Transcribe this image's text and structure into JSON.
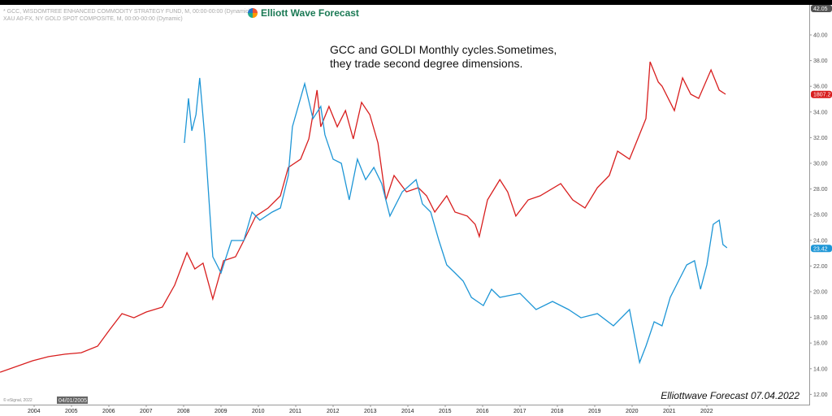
{
  "legend": [
    "* GCC, WISDOMTREE ENHANCED COMMODITY STRATEGY FUND, M, 00:00-00:00 (Dynamic)",
    "XAU A0-FX, NY GOLD SPOT COMPOSITE, M, 00:00-00:00 (Dynamic)"
  ],
  "brand": "Elliott Wave Forecast",
  "footer": "Elliottwave Forecast  07.04.2022",
  "copyright": "© eSignal, 2022",
  "colors": {
    "gcc": "#1e96d6",
    "gold": "#d81e1e"
  },
  "chart_data": {
    "type": "line",
    "title": "GCC and GOLDI Monthly cycles.Sometimes,\nthey trade second degree dimensions.",
    "xlim": [
      2003.1,
      2023.5
    ],
    "ylim": [
      11.5,
      42.05
    ],
    "y_ticks": [
      12,
      14,
      16,
      18,
      20,
      22,
      24,
      26,
      28,
      30,
      32,
      34,
      36,
      38,
      40
    ],
    "y_tick_labels": [
      "12.00",
      "14.00",
      "16.00",
      "18.00",
      "20.00",
      "22.00",
      "24.00",
      "26.00",
      "28.00",
      "30.00",
      "32.00",
      "34.00",
      "36.00",
      "38.00",
      "40.00"
    ],
    "x_ticks": [
      "2004",
      "2005",
      "2006",
      "2007",
      "2008",
      "2009",
      "2010",
      "2011",
      "2012",
      "2013",
      "2014",
      "2015",
      "2016",
      "2017",
      "2018",
      "2019",
      "2020",
      "2021",
      "2022"
    ],
    "x_cursor_label": "04/01/2005",
    "top_label": "42.05",
    "grid": false,
    "series": [
      {
        "name": "XAU A0-FX",
        "color": "#d81e1e",
        "last_label": "1807.2",
        "points": [
          [
            2003.09,
            13.73
          ],
          [
            2003.96,
            14.62
          ],
          [
            2004.39,
            14.94
          ],
          [
            2004.83,
            15.13
          ],
          [
            2005.26,
            15.25
          ],
          [
            2005.7,
            15.76
          ],
          [
            2006.02,
            17.03
          ],
          [
            2006.35,
            18.29
          ],
          [
            2006.67,
            17.97
          ],
          [
            2007.0,
            18.42
          ],
          [
            2007.43,
            18.8
          ],
          [
            2007.76,
            20.51
          ],
          [
            2008.09,
            23.04
          ],
          [
            2008.3,
            21.77
          ],
          [
            2008.52,
            22.22
          ],
          [
            2008.78,
            19.43
          ],
          [
            2009.07,
            22.41
          ],
          [
            2009.39,
            22.72
          ],
          [
            2009.61,
            23.99
          ],
          [
            2009.93,
            25.89
          ],
          [
            2010.26,
            26.52
          ],
          [
            2010.59,
            27.47
          ],
          [
            2010.8,
            29.68
          ],
          [
            2011.13,
            30.32
          ],
          [
            2011.35,
            31.9
          ],
          [
            2011.57,
            35.7
          ],
          [
            2011.67,
            32.85
          ],
          [
            2011.89,
            34.43
          ],
          [
            2012.11,
            32.85
          ],
          [
            2012.33,
            34.11
          ],
          [
            2012.54,
            31.9
          ],
          [
            2012.76,
            34.75
          ],
          [
            2012.98,
            33.8
          ],
          [
            2013.2,
            31.58
          ],
          [
            2013.41,
            27.15
          ],
          [
            2013.63,
            29.05
          ],
          [
            2013.96,
            27.78
          ],
          [
            2014.28,
            28.1
          ],
          [
            2014.5,
            27.47
          ],
          [
            2014.72,
            26.2
          ],
          [
            2015.04,
            27.47
          ],
          [
            2015.26,
            26.2
          ],
          [
            2015.59,
            25.89
          ],
          [
            2015.8,
            25.25
          ],
          [
            2015.91,
            24.3
          ],
          [
            2016.13,
            27.15
          ],
          [
            2016.46,
            28.73
          ],
          [
            2016.67,
            27.78
          ],
          [
            2016.89,
            25.89
          ],
          [
            2017.22,
            27.15
          ],
          [
            2017.54,
            27.47
          ],
          [
            2018.09,
            28.42
          ],
          [
            2018.41,
            27.15
          ],
          [
            2018.74,
            26.52
          ],
          [
            2019.07,
            28.1
          ],
          [
            2019.39,
            29.05
          ],
          [
            2019.61,
            30.95
          ],
          [
            2019.93,
            30.32
          ],
          [
            2020.15,
            31.9
          ],
          [
            2020.37,
            33.48
          ],
          [
            2020.48,
            37.91
          ],
          [
            2020.7,
            36.33
          ],
          [
            2020.8,
            36.01
          ],
          [
            2021.13,
            34.11
          ],
          [
            2021.35,
            36.65
          ],
          [
            2021.57,
            35.38
          ],
          [
            2021.78,
            35.06
          ],
          [
            2022.11,
            37.28
          ],
          [
            2022.33,
            35.7
          ],
          [
            2022.5,
            35.38
          ]
        ]
      },
      {
        "name": "GCC",
        "color": "#1e96d6",
        "last_label": "23.42",
        "points": [
          [
            2008.02,
            31.58
          ],
          [
            2008.13,
            35.06
          ],
          [
            2008.22,
            32.53
          ],
          [
            2008.33,
            33.8
          ],
          [
            2008.43,
            36.65
          ],
          [
            2008.57,
            31.9
          ],
          [
            2008.78,
            22.72
          ],
          [
            2009.0,
            21.46
          ],
          [
            2009.28,
            23.99
          ],
          [
            2009.61,
            23.99
          ],
          [
            2009.83,
            26.2
          ],
          [
            2010.04,
            25.57
          ],
          [
            2010.37,
            26.2
          ],
          [
            2010.59,
            26.52
          ],
          [
            2010.8,
            29.05
          ],
          [
            2010.91,
            32.85
          ],
          [
            2011.24,
            36.2
          ],
          [
            2011.46,
            33.48
          ],
          [
            2011.67,
            34.43
          ],
          [
            2011.78,
            32.22
          ],
          [
            2012.0,
            30.32
          ],
          [
            2012.22,
            30.0
          ],
          [
            2012.43,
            27.15
          ],
          [
            2012.65,
            30.32
          ],
          [
            2012.87,
            28.73
          ],
          [
            2013.09,
            29.68
          ],
          [
            2013.3,
            28.42
          ],
          [
            2013.52,
            25.89
          ],
          [
            2013.85,
            27.78
          ],
          [
            2014.22,
            28.73
          ],
          [
            2014.39,
            26.84
          ],
          [
            2014.61,
            26.2
          ],
          [
            2014.83,
            23.99
          ],
          [
            2015.04,
            22.09
          ],
          [
            2015.26,
            21.46
          ],
          [
            2015.48,
            20.82
          ],
          [
            2015.7,
            19.56
          ],
          [
            2016.02,
            18.92
          ],
          [
            2016.24,
            20.19
          ],
          [
            2016.46,
            19.56
          ],
          [
            2017.0,
            19.87
          ],
          [
            2017.43,
            18.61
          ],
          [
            2017.87,
            19.24
          ],
          [
            2018.3,
            18.61
          ],
          [
            2018.63,
            17.97
          ],
          [
            2019.07,
            18.29
          ],
          [
            2019.5,
            17.34
          ],
          [
            2019.93,
            18.61
          ],
          [
            2020.2,
            14.49
          ],
          [
            2020.37,
            15.76
          ],
          [
            2020.59,
            17.66
          ],
          [
            2020.8,
            17.34
          ],
          [
            2021.02,
            19.56
          ],
          [
            2021.24,
            20.82
          ],
          [
            2021.46,
            22.09
          ],
          [
            2021.67,
            22.41
          ],
          [
            2021.83,
            20.19
          ],
          [
            2022.0,
            22.09
          ],
          [
            2022.17,
            25.25
          ],
          [
            2022.33,
            25.57
          ],
          [
            2022.43,
            23.67
          ],
          [
            2022.54,
            23.42
          ]
        ]
      }
    ]
  }
}
